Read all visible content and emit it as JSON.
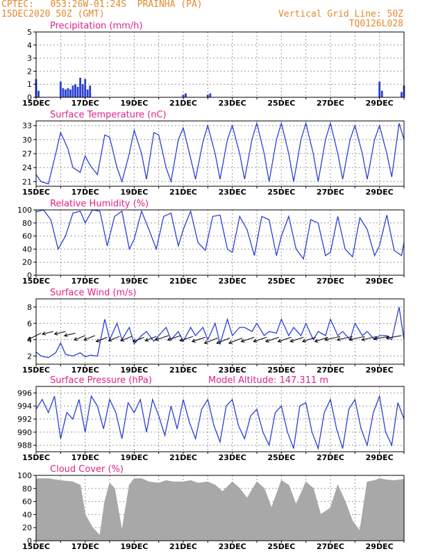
{
  "header": {
    "line1": "CPTEC:   053:26W-01:24S  PRAINHA (PA)",
    "line2": "15DEC2020 50Z (GMT)",
    "right1": "Vertical Grid Line: 50Z",
    "right2": "TQ0126L028",
    "color": "#e08a2e"
  },
  "colors": {
    "title": "#e0218a",
    "line": "#2a3fd6",
    "cloud": "#a8a8a8",
    "arrow": "#000000"
  },
  "chart_data": [
    {
      "type": "bar",
      "title": "Precipitation (mm/h)",
      "ylim": [
        0,
        5
      ],
      "yticks": [
        0,
        1,
        2,
        3,
        4,
        5
      ],
      "xlim": [
        15,
        30
      ],
      "xtick_labels": [
        "15DEC",
        "17DEC",
        "19DEC",
        "21DEC",
        "23DEC",
        "25DEC",
        "27DEC",
        "29DEC"
      ],
      "x": [
        15.0,
        15.1,
        16.0,
        16.1,
        16.2,
        16.3,
        16.4,
        16.5,
        16.6,
        16.7,
        16.8,
        16.9,
        17.0,
        17.1,
        17.2,
        21.0,
        21.1,
        22.0,
        22.1,
        29.0,
        29.1,
        29.9,
        30.0
      ],
      "values": [
        1.4,
        0.5,
        1.2,
        0.7,
        0.6,
        0.7,
        0.6,
        0.9,
        1.0,
        0.8,
        1.5,
        1.0,
        1.4,
        0.6,
        0.9,
        0.2,
        0.3,
        0.2,
        0.3,
        1.2,
        0.5,
        0.4,
        0.9
      ]
    },
    {
      "type": "line",
      "title": "Surface Temperature (nC)",
      "ylim": [
        20,
        34
      ],
      "yticks": [
        21,
        24,
        27,
        30,
        33
      ],
      "xlim": [
        15,
        30
      ],
      "xtick_labels": [
        "15DEC",
        "17DEC",
        "19DEC",
        "21DEC",
        "23DEC",
        "25DEC",
        "27DEC",
        "29DEC"
      ],
      "x": [
        15.0,
        15.2,
        15.5,
        15.8,
        16.0,
        16.3,
        16.5,
        16.8,
        17.0,
        17.2,
        17.5,
        17.8,
        18.0,
        18.3,
        18.5,
        18.8,
        19.0,
        19.3,
        19.5,
        19.8,
        20.0,
        20.3,
        20.5,
        20.8,
        21.0,
        21.3,
        21.5,
        21.8,
        22.0,
        22.3,
        22.5,
        22.8,
        23.0,
        23.3,
        23.5,
        23.8,
        24.0,
        24.3,
        24.5,
        24.8,
        25.0,
        25.3,
        25.5,
        25.8,
        26.0,
        26.3,
        26.5,
        26.8,
        27.0,
        27.3,
        27.5,
        27.8,
        28.0,
        28.3,
        28.5,
        28.8,
        29.0,
        29.3,
        29.5,
        29.8,
        30.0
      ],
      "values": [
        22.5,
        21.0,
        20.5,
        27.0,
        31.5,
        28.0,
        24.0,
        23.0,
        26.5,
        24.5,
        22.5,
        31.0,
        30.5,
        24.0,
        21.0,
        27.0,
        32.0,
        27.0,
        21.5,
        31.5,
        31.0,
        24.0,
        21.0,
        30.0,
        32.5,
        26.0,
        21.5,
        29.5,
        33.0,
        27.0,
        21.5,
        30.0,
        33.0,
        27.0,
        21.5,
        30.0,
        33.5,
        27.0,
        21.0,
        30.0,
        33.5,
        27.0,
        21.0,
        30.0,
        33.5,
        27.0,
        21.0,
        30.0,
        33.5,
        27.0,
        21.5,
        30.0,
        33.0,
        27.0,
        21.5,
        30.0,
        33.0,
        27.0,
        22.0,
        33.5,
        30.0
      ]
    },
    {
      "type": "line",
      "title": "Relative Humidity (%)",
      "ylim": [
        0,
        100
      ],
      "yticks": [
        0,
        20,
        40,
        60,
        80,
        100
      ],
      "xlim": [
        15,
        30
      ],
      "xtick_labels": [
        "15DEC",
        "17DEC",
        "19DEC",
        "21DEC",
        "23DEC",
        "25DEC",
        "27DEC",
        "29DEC"
      ],
      "x": [
        15.0,
        15.3,
        15.6,
        15.9,
        16.2,
        16.5,
        16.8,
        17.0,
        17.3,
        17.6,
        17.9,
        18.2,
        18.5,
        18.8,
        19.0,
        19.3,
        19.6,
        19.9,
        20.2,
        20.5,
        20.8,
        21.0,
        21.3,
        21.6,
        21.9,
        22.2,
        22.5,
        22.8,
        23.0,
        23.3,
        23.6,
        23.9,
        24.2,
        24.5,
        24.8,
        25.0,
        25.3,
        25.6,
        25.9,
        26.2,
        26.5,
        26.8,
        27.0,
        27.3,
        27.6,
        27.9,
        28.2,
        28.5,
        28.8,
        29.0,
        29.3,
        29.6,
        29.9,
        30.0
      ],
      "values": [
        97,
        100,
        85,
        40,
        60,
        95,
        98,
        80,
        100,
        98,
        45,
        90,
        98,
        40,
        55,
        98,
        70,
        40,
        90,
        95,
        45,
        70,
        98,
        50,
        38,
        90,
        92,
        40,
        35,
        90,
        70,
        30,
        90,
        85,
        30,
        60,
        90,
        40,
        25,
        85,
        80,
        30,
        35,
        90,
        40,
        28,
        88,
        70,
        30,
        45,
        92,
        38,
        30,
        50
      ]
    },
    {
      "type": "line",
      "title": "Surface Wind (m/s)",
      "ylim": [
        1,
        9
      ],
      "yticks": [
        2,
        4,
        6,
        8
      ],
      "xlim": [
        15,
        30
      ],
      "xtick_labels": [
        "15DEC",
        "17DEC",
        "19DEC",
        "21DEC",
        "23DEC",
        "25DEC",
        "27DEC",
        "29DEC"
      ],
      "x": [
        15.0,
        15.2,
        15.5,
        15.8,
        16.0,
        16.2,
        16.5,
        16.8,
        17.0,
        17.2,
        17.5,
        17.8,
        18.0,
        18.3,
        18.5,
        18.8,
        19.0,
        19.3,
        19.5,
        19.8,
        20.0,
        20.3,
        20.5,
        20.8,
        21.0,
        21.3,
        21.5,
        21.8,
        22.0,
        22.3,
        22.5,
        22.8,
        23.0,
        23.3,
        23.5,
        23.8,
        24.0,
        24.3,
        24.5,
        24.8,
        25.0,
        25.3,
        25.5,
        25.8,
        26.0,
        26.3,
        26.5,
        26.8,
        27.0,
        27.3,
        27.5,
        27.8,
        28.0,
        28.3,
        28.5,
        28.8,
        29.0,
        29.3,
        29.5,
        29.8,
        30.0
      ],
      "values": [
        2.5,
        2.0,
        1.8,
        2.4,
        3.6,
        2.2,
        2.0,
        2.4,
        1.9,
        2.1,
        2.0,
        6.5,
        4.0,
        6.0,
        4.0,
        5.5,
        3.5,
        4.5,
        5.0,
        3.8,
        4.5,
        5.5,
        4.0,
        5.0,
        3.8,
        5.5,
        4.5,
        5.5,
        4.0,
        6.0,
        3.5,
        6.5,
        4.5,
        5.5,
        5.5,
        5.0,
        6.0,
        4.5,
        5.0,
        4.8,
        6.5,
        4.5,
        5.5,
        4.5,
        6.0,
        4.0,
        5.0,
        4.5,
        6.5,
        4.5,
        5.0,
        4.0,
        6.0,
        4.5,
        5.0,
        4.0,
        4.5,
        4.5,
        4.0,
        8.0,
        4.0
      ]
    },
    {
      "type": "line",
      "title": "Surface Pressure (hPa)",
      "annotation": "Model Altitude: 147.311 m",
      "ylim": [
        987,
        997
      ],
      "yticks": [
        988,
        990,
        992,
        994,
        996
      ],
      "xlim": [
        15,
        30
      ],
      "xtick_labels": [
        "15DEC",
        "17DEC",
        "19DEC",
        "21DEC",
        "23DEC",
        "25DEC",
        "27DEC",
        "29DEC"
      ],
      "x": [
        15.0,
        15.25,
        15.5,
        15.75,
        16.0,
        16.25,
        16.5,
        16.75,
        17.0,
        17.25,
        17.5,
        17.75,
        18.0,
        18.25,
        18.5,
        18.75,
        19.0,
        19.25,
        19.5,
        19.75,
        20.0,
        20.25,
        20.5,
        20.75,
        21.0,
        21.25,
        21.5,
        21.75,
        22.0,
        22.25,
        22.5,
        22.75,
        23.0,
        23.25,
        23.5,
        23.75,
        24.0,
        24.25,
        24.5,
        24.75,
        25.0,
        25.25,
        25.5,
        25.75,
        26.0,
        26.25,
        26.5,
        26.75,
        27.0,
        27.25,
        27.5,
        27.75,
        28.0,
        28.25,
        28.5,
        28.75,
        29.0,
        29.25,
        29.5,
        29.75,
        30.0
      ],
      "values": [
        993.5,
        995.0,
        993.0,
        995.5,
        989.0,
        993.0,
        992.0,
        995.0,
        990.0,
        995.5,
        994.0,
        990.5,
        995.0,
        993.0,
        989.0,
        994.5,
        993.0,
        995.0,
        990.0,
        995.0,
        992.5,
        989.5,
        994.0,
        990.5,
        995.0,
        991.5,
        989.0,
        993.5,
        995.0,
        991.0,
        988.5,
        994.0,
        995.0,
        991.0,
        989.0,
        992.5,
        993.5,
        990.0,
        988.0,
        993.0,
        994.0,
        990.0,
        987.5,
        994.0,
        994.5,
        990.0,
        987.5,
        993.0,
        995.0,
        990.5,
        987.5,
        993.5,
        995.0,
        990.5,
        988.0,
        993.0,
        995.5,
        990.0,
        988.0,
        994.5,
        992.0
      ]
    },
    {
      "type": "area",
      "title": "Cloud Cover (%)",
      "ylim": [
        0,
        100
      ],
      "yticks": [
        0,
        20,
        40,
        60,
        80,
        100
      ],
      "xlim": [
        15,
        30
      ],
      "xtick_labels": [
        "15DEC",
        "17DEC",
        "19DEC",
        "21DEC",
        "23DEC",
        "25DEC",
        "27DEC",
        "29DEC"
      ],
      "x": [
        15.0,
        15.5,
        16.0,
        16.5,
        16.8,
        17.0,
        17.3,
        17.6,
        17.8,
        18.0,
        18.2,
        18.5,
        18.8,
        19.0,
        19.3,
        19.6,
        20.0,
        20.3,
        20.6,
        21.0,
        21.3,
        21.6,
        22.0,
        22.3,
        22.6,
        23.0,
        23.3,
        23.6,
        24.0,
        24.3,
        24.6,
        25.0,
        25.3,
        25.6,
        26.0,
        26.3,
        26.6,
        27.0,
        27.3,
        27.6,
        27.9,
        28.2,
        28.5,
        28.8,
        29.0,
        29.3,
        29.6,
        30.0
      ],
      "values": [
        95,
        95,
        92,
        90,
        85,
        40,
        20,
        8,
        60,
        88,
        80,
        15,
        85,
        95,
        95,
        90,
        88,
        92,
        90,
        90,
        92,
        88,
        90,
        85,
        75,
        90,
        80,
        65,
        90,
        80,
        50,
        92,
        85,
        55,
        90,
        80,
        40,
        50,
        85,
        60,
        30,
        15,
        90,
        92,
        95,
        93,
        92,
        94
      ]
    }
  ],
  "wind_arrows": {
    "x": [
      15.2,
      15.7,
      16.2,
      16.6,
      17.0,
      17.4,
      17.9,
      18.4,
      18.9,
      19.4,
      19.9,
      20.4,
      20.9,
      21.4,
      21.9,
      22.4,
      22.9,
      23.4,
      23.9,
      24.4,
      24.9,
      25.4,
      25.9,
      26.4,
      26.9,
      27.4,
      27.9,
      28.4,
      28.9,
      29.4,
      29.9
    ],
    "y": [
      4.8,
      5.0,
      5.0,
      4.8,
      4.5,
      4.5,
      4.3,
      4.4,
      4.4,
      4.3,
      4.4,
      4.5,
      4.5,
      4.4,
      4.3,
      4.2,
      4.2,
      4.2,
      4.3,
      4.3,
      4.3,
      4.3,
      4.3,
      4.3,
      4.3,
      4.4,
      4.4,
      4.4,
      4.4,
      4.4,
      4.5
    ],
    "u": [
      -3,
      -2.5,
      -2.5,
      -2.5,
      -2.5,
      -2.5,
      -2.5,
      -2.5,
      -2.5,
      -2.5,
      -2.5,
      -3,
      -3,
      -3,
      -3,
      -3,
      -3,
      -3,
      -3,
      -3,
      -3,
      -3,
      -3,
      -3,
      -3,
      -3.5,
      -3.5,
      -3.5,
      -3.5,
      -3.5,
      -3.5
    ],
    "v": [
      -1.5,
      -0.6,
      -0.6,
      -0.6,
      -1,
      -1,
      -1,
      -1,
      -1,
      -1,
      -1,
      -1,
      -1,
      -1,
      -1,
      -1.2,
      -1.2,
      -1.2,
      -1,
      -1,
      -1,
      -1,
      -1,
      -1,
      -1,
      -0.8,
      -0.8,
      -0.8,
      -0.8,
      -0.6,
      -0.6
    ]
  }
}
